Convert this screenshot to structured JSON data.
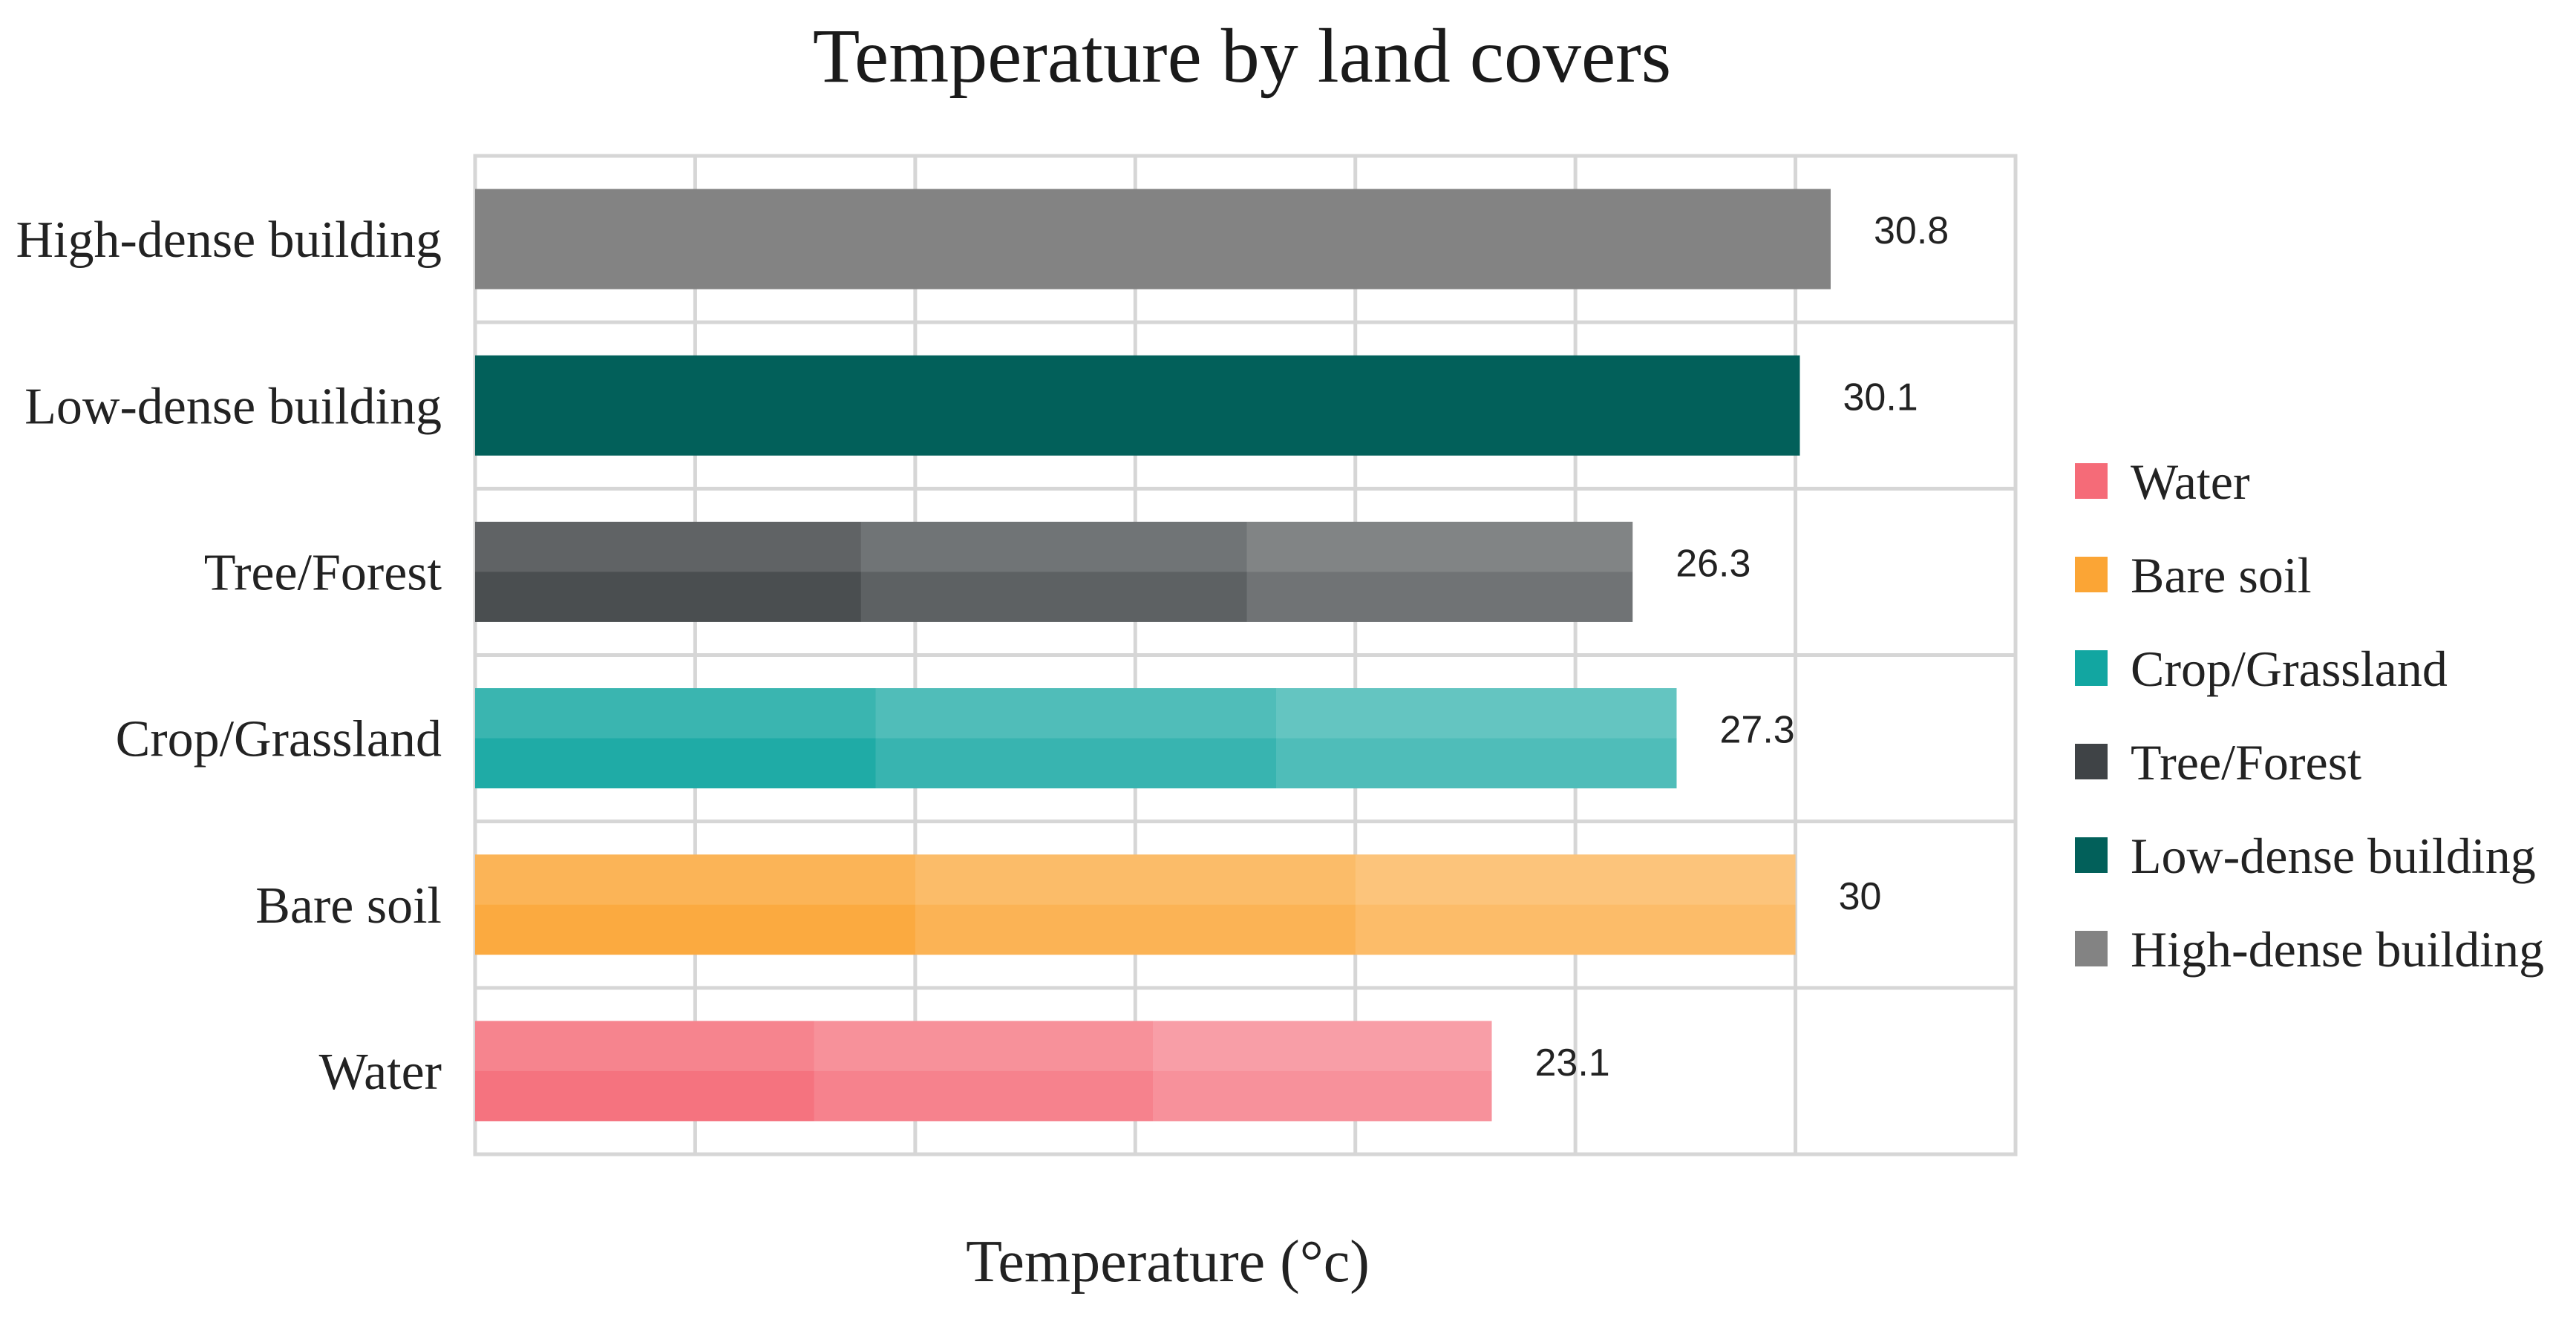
{
  "chart_data": {
    "type": "bar",
    "orientation": "horizontal",
    "title": "Temperature by land covers",
    "xlabel": "Temperature (°c)",
    "ylabel": "",
    "xlim": [
      0,
      35
    ],
    "grid": true,
    "legend_position": "right",
    "categories": [
      "Water",
      "Bare soil",
      "Crop/Grassland",
      "Tree/Forest",
      "Low-dense building",
      "High-dense building"
    ],
    "values": [
      23.1,
      30,
      27.3,
      26.3,
      30.1,
      30.8
    ],
    "value_labels": [
      "23.1",
      "30",
      "27.3",
      "26.3",
      "30.1",
      "30.8"
    ],
    "legend": [
      "Water",
      "Bare soil",
      "Crop/Grassland",
      "Tree/Forest",
      "Low-dense building",
      "High-dense building"
    ],
    "colors": [
      "#f56b78",
      "#fba535",
      "#12a6a1",
      "#3f4346",
      "#02605a",
      "#838383"
    ]
  }
}
